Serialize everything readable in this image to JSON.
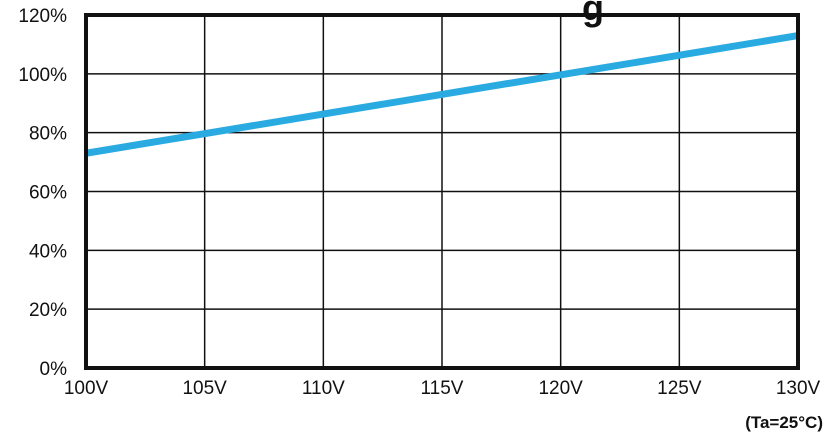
{
  "chart_data": {
    "type": "line",
    "title_fragment": "g",
    "annotation": "(Ta=25°C)",
    "x_ticks": [
      "100V",
      "105V",
      "110V",
      "115V",
      "120V",
      "125V",
      "130V"
    ],
    "y_ticks": [
      "0%",
      "20%",
      "40%",
      "60%",
      "80%",
      "100%",
      "120%"
    ],
    "xlim": [
      100,
      130
    ],
    "ylim": [
      0,
      120
    ],
    "grid": true,
    "series": [
      {
        "color": "#29abe2",
        "x": [
          100,
          130
        ],
        "y": [
          73,
          113
        ]
      }
    ]
  }
}
